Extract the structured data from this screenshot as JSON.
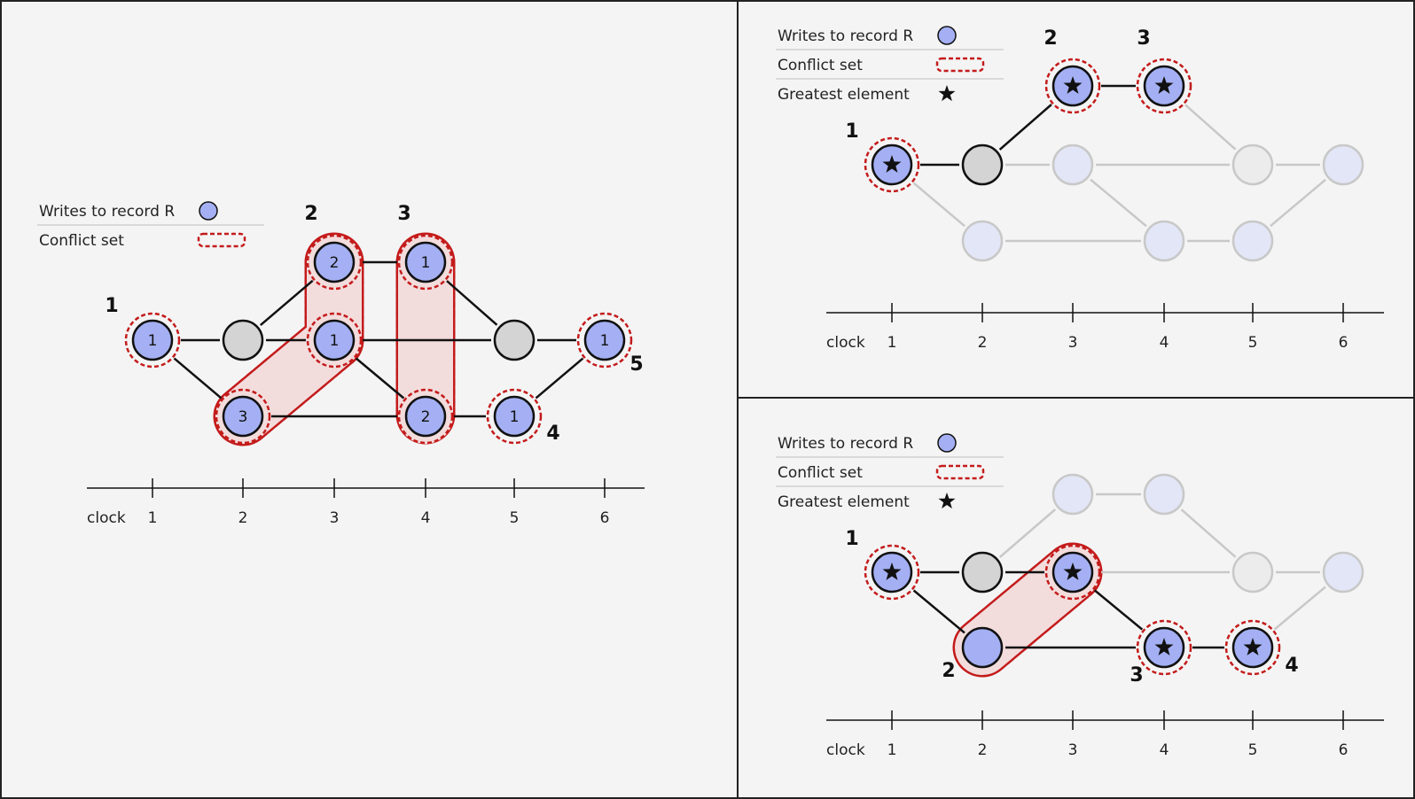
{
  "colors": {
    "background": "#f4f4f4",
    "border": "#222222",
    "write_fill": "#a4b0f3",
    "nonwrite_fill": "#d4d4d4",
    "faded_write_fill": "#e3e6f6",
    "faded_nonwrite_fill": "#ececec",
    "faded_stroke": "#c8c8c8",
    "conflict_stroke": "#c41b1b",
    "conflict_fill": "#f3dcdc"
  },
  "legend": {
    "writes_label": "Writes to record R",
    "conflict_label": "Conflict set",
    "greatest_label": "Greatest element"
  },
  "clock": {
    "label": "clock",
    "ticks": [
      "1",
      "2",
      "3",
      "4",
      "5",
      "6"
    ]
  },
  "panels": [
    {
      "id": "left",
      "show_greatest": false,
      "nodes": [
        {
          "id": "n1",
          "clock": 1,
          "row": "mid",
          "type": "write",
          "ring": true,
          "label": "1"
        },
        {
          "id": "n2",
          "clock": 2,
          "row": "mid",
          "type": "nonwrite"
        },
        {
          "id": "n3",
          "clock": 2,
          "row": "bot",
          "type": "write",
          "ring": true,
          "label": "3"
        },
        {
          "id": "n4",
          "clock": 3,
          "row": "top",
          "type": "write",
          "ring": true,
          "label": "2"
        },
        {
          "id": "n5",
          "clock": 3,
          "row": "mid",
          "type": "write",
          "ring": true,
          "label": "1"
        },
        {
          "id": "n6",
          "clock": 4,
          "row": "top",
          "type": "write",
          "ring": true,
          "label": "1"
        },
        {
          "id": "n7",
          "clock": 4,
          "row": "bot",
          "type": "write",
          "ring": true,
          "label": "2"
        },
        {
          "id": "n8",
          "clock": 5,
          "row": "mid",
          "type": "nonwrite"
        },
        {
          "id": "n9",
          "clock": 5,
          "row": "bot",
          "type": "write",
          "ring": true,
          "label": "1"
        },
        {
          "id": "n10",
          "clock": 6,
          "row": "mid",
          "type": "write",
          "ring": true,
          "label": "1"
        }
      ],
      "edges": [
        [
          "n1",
          "n2"
        ],
        [
          "n1",
          "n3"
        ],
        [
          "n2",
          "n4"
        ],
        [
          "n2",
          "n5"
        ],
        [
          "n3",
          "n7"
        ],
        [
          "n4",
          "n6"
        ],
        [
          "n5",
          "n7"
        ],
        [
          "n5",
          "n8"
        ],
        [
          "n6",
          "n8"
        ],
        [
          "n8",
          "n10"
        ],
        [
          "n7",
          "n9"
        ],
        [
          "n9",
          "n10"
        ]
      ],
      "sets": [
        {
          "label": "1",
          "nodes": [
            "n1"
          ]
        },
        {
          "label": "2",
          "nodes": [
            "n3",
            "n5",
            "n4"
          ]
        },
        {
          "label": "3",
          "nodes": [
            "n6",
            "n7"
          ]
        },
        {
          "label": "4",
          "nodes": [
            "n9"
          ]
        },
        {
          "label": "5",
          "nodes": [
            "n10"
          ]
        }
      ]
    },
    {
      "id": "top-right",
      "show_greatest": true,
      "nodes": [
        {
          "id": "a1",
          "clock": 1,
          "row": "mid",
          "type": "write",
          "ring": true,
          "star": true
        },
        {
          "id": "a2",
          "clock": 2,
          "row": "mid",
          "type": "nonwrite"
        },
        {
          "id": "a3",
          "clock": 2,
          "row": "bot",
          "type": "write",
          "faded": true
        },
        {
          "id": "a4",
          "clock": 3,
          "row": "top",
          "type": "write",
          "ring": true,
          "star": true
        },
        {
          "id": "a5",
          "clock": 3,
          "row": "mid",
          "type": "write",
          "faded": true
        },
        {
          "id": "a6",
          "clock": 4,
          "row": "top",
          "type": "write",
          "ring": true,
          "star": true
        },
        {
          "id": "a7",
          "clock": 4,
          "row": "bot",
          "type": "write",
          "faded": true
        },
        {
          "id": "a8",
          "clock": 5,
          "row": "mid",
          "type": "nonwrite",
          "faded": true
        },
        {
          "id": "a9",
          "clock": 5,
          "row": "bot",
          "type": "write",
          "faded": true
        },
        {
          "id": "a10",
          "clock": 6,
          "row": "mid",
          "type": "write",
          "faded": true
        }
      ],
      "edges": [
        [
          "a1",
          "a2"
        ],
        [
          "a1",
          "a3",
          "faded"
        ],
        [
          "a2",
          "a4"
        ],
        [
          "a2",
          "a5",
          "faded"
        ],
        [
          "a3",
          "a7",
          "faded"
        ],
        [
          "a4",
          "a6"
        ],
        [
          "a5",
          "a7",
          "faded"
        ],
        [
          "a5",
          "a8",
          "faded"
        ],
        [
          "a6",
          "a8",
          "faded"
        ],
        [
          "a8",
          "a10",
          "faded"
        ],
        [
          "a7",
          "a9",
          "faded"
        ],
        [
          "a9",
          "a10",
          "faded"
        ]
      ],
      "sets": [
        {
          "label": "1",
          "nodes": [
            "a1"
          ]
        },
        {
          "label": "2",
          "nodes": [
            "a4"
          ]
        },
        {
          "label": "3",
          "nodes": [
            "a6"
          ]
        }
      ]
    },
    {
      "id": "bottom-right",
      "show_greatest": true,
      "nodes": [
        {
          "id": "b1",
          "clock": 1,
          "row": "mid",
          "type": "write",
          "ring": true,
          "star": true
        },
        {
          "id": "b2",
          "clock": 2,
          "row": "mid",
          "type": "nonwrite"
        },
        {
          "id": "b3",
          "clock": 2,
          "row": "bot",
          "type": "write"
        },
        {
          "id": "b4",
          "clock": 3,
          "row": "top",
          "type": "write",
          "faded": true
        },
        {
          "id": "b5",
          "clock": 3,
          "row": "mid",
          "type": "write",
          "ring": true,
          "star": true
        },
        {
          "id": "b6",
          "clock": 4,
          "row": "top",
          "type": "write",
          "faded": true
        },
        {
          "id": "b7",
          "clock": 4,
          "row": "bot",
          "type": "write",
          "ring": true,
          "star": true
        },
        {
          "id": "b8",
          "clock": 5,
          "row": "mid",
          "type": "nonwrite",
          "faded": true
        },
        {
          "id": "b9",
          "clock": 5,
          "row": "bot",
          "type": "write",
          "ring": true,
          "star": true
        },
        {
          "id": "b10",
          "clock": 6,
          "row": "mid",
          "type": "write",
          "faded": true
        }
      ],
      "edges": [
        [
          "b1",
          "b2"
        ],
        [
          "b1",
          "b3"
        ],
        [
          "b2",
          "b4",
          "faded"
        ],
        [
          "b2",
          "b5"
        ],
        [
          "b3",
          "b7"
        ],
        [
          "b4",
          "b6",
          "faded"
        ],
        [
          "b5",
          "b7"
        ],
        [
          "b5",
          "b8",
          "faded"
        ],
        [
          "b6",
          "b8",
          "faded"
        ],
        [
          "b8",
          "b10",
          "faded"
        ],
        [
          "b7",
          "b9"
        ],
        [
          "b9",
          "b10",
          "faded"
        ]
      ],
      "sets": [
        {
          "label": "1",
          "nodes": [
            "b1"
          ]
        },
        {
          "label": "2",
          "nodes": [
            "b3",
            "b5"
          ]
        },
        {
          "label": "3",
          "nodes": [
            "b7"
          ]
        },
        {
          "label": "4",
          "nodes": [
            "b9"
          ]
        }
      ]
    }
  ]
}
